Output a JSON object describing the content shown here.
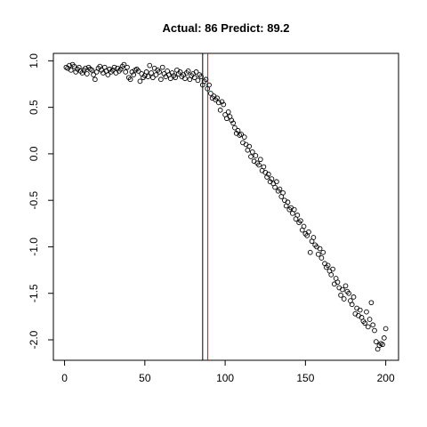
{
  "chart_data": {
    "type": "scatter",
    "title": "Actual: 86 Predict: 89.2",
    "x": [
      1,
      2,
      3,
      4,
      5,
      6,
      7,
      8,
      9,
      10,
      11,
      12,
      13,
      14,
      15,
      16,
      17,
      18,
      19,
      20,
      21,
      22,
      23,
      24,
      25,
      26,
      27,
      28,
      29,
      30,
      31,
      32,
      33,
      34,
      35,
      36,
      37,
      38,
      39,
      40,
      41,
      42,
      43,
      44,
      45,
      46,
      47,
      48,
      49,
      50,
      51,
      52,
      53,
      54,
      55,
      56,
      57,
      58,
      59,
      60,
      61,
      62,
      63,
      64,
      65,
      66,
      67,
      68,
      69,
      70,
      71,
      72,
      73,
      74,
      75,
      76,
      77,
      78,
      79,
      80,
      81,
      82,
      83,
      84,
      85,
      86,
      87,
      88,
      89,
      90,
      91,
      92,
      93,
      94,
      95,
      96,
      97,
      98,
      99,
      100,
      101,
      102,
      103,
      104,
      105,
      106,
      107,
      108,
      109,
      110,
      111,
      112,
      113,
      114,
      115,
      116,
      117,
      118,
      119,
      120,
      121,
      122,
      123,
      124,
      125,
      126,
      127,
      128,
      129,
      130,
      131,
      132,
      133,
      134,
      135,
      136,
      137,
      138,
      139,
      140,
      141,
      142,
      143,
      144,
      145,
      146,
      147,
      148,
      149,
      150,
      151,
      152,
      153,
      154,
      155,
      156,
      157,
      158,
      159,
      160,
      161,
      162,
      163,
      164,
      165,
      166,
      167,
      168,
      169,
      170,
      171,
      172,
      173,
      174,
      175,
      176,
      177,
      178,
      179,
      180,
      181,
      182,
      183,
      184,
      185,
      186,
      187,
      188,
      189,
      190,
      191,
      192,
      193,
      194,
      195,
      196,
      197,
      198,
      199,
      200
    ],
    "values": [
      0.93,
      0.92,
      0.95,
      0.9,
      0.96,
      0.94,
      0.88,
      0.91,
      0.93,
      0.89,
      0.87,
      0.9,
      0.92,
      0.86,
      0.93,
      0.91,
      0.9,
      0.85,
      0.8,
      0.88,
      0.92,
      0.94,
      0.9,
      0.87,
      0.93,
      0.89,
      0.85,
      0.91,
      0.88,
      0.9,
      0.93,
      0.87,
      0.92,
      0.89,
      0.91,
      0.94,
      0.96,
      0.88,
      0.93,
      0.82,
      0.8,
      0.88,
      0.85,
      0.9,
      0.91,
      0.89,
      0.78,
      0.86,
      0.82,
      0.84,
      0.88,
      0.83,
      0.95,
      0.87,
      0.82,
      0.92,
      0.85,
      0.9,
      0.88,
      0.8,
      0.93,
      0.86,
      0.83,
      0.89,
      0.85,
      0.81,
      0.87,
      0.84,
      0.82,
      0.9,
      0.86,
      0.88,
      0.83,
      0.85,
      0.81,
      0.87,
      0.89,
      0.8,
      0.84,
      0.86,
      0.82,
      0.88,
      0.79,
      0.85,
      0.83,
      0.74,
      0.78,
      0.8,
      0.7,
      0.74,
      0.65,
      0.6,
      0.62,
      0.58,
      0.6,
      0.55,
      0.47,
      0.56,
      0.53,
      0.42,
      0.38,
      0.45,
      0.4,
      0.36,
      0.33,
      0.28,
      0.22,
      0.25,
      0.2,
      0.21,
      0.12,
      0.18,
      0.1,
      0.04,
      0.08,
      -0.03,
      0.02,
      -0.08,
      -0.02,
      -0.1,
      -0.12,
      -0.06,
      -0.18,
      -0.14,
      -0.2,
      -0.25,
      -0.22,
      -0.3,
      -0.27,
      -0.32,
      -0.36,
      -0.3,
      -0.4,
      -0.38,
      -0.46,
      -0.42,
      -0.5,
      -0.56,
      -0.52,
      -0.6,
      -0.58,
      -0.64,
      -0.6,
      -0.7,
      -0.66,
      -0.74,
      -0.72,
      -0.82,
      -0.78,
      -0.86,
      -0.88,
      -0.84,
      -1.06,
      -0.94,
      -0.9,
      -0.98,
      -1.0,
      -1.08,
      -1.02,
      -1.12,
      -1.06,
      -1.18,
      -1.22,
      -1.2,
      -1.26,
      -1.3,
      -1.24,
      -1.4,
      -1.34,
      -1.38,
      -1.44,
      -1.52,
      -1.46,
      -1.56,
      -1.42,
      -1.48,
      -1.5,
      -1.58,
      -1.62,
      -1.54,
      -1.72,
      -1.66,
      -1.74,
      -1.68,
      -1.76,
      -1.8,
      -1.82,
      -1.7,
      -1.86,
      -1.78,
      -1.6,
      -1.84,
      -1.9,
      -2.02,
      -2.1,
      -2.06,
      -2.04,
      -2.05,
      -1.98,
      -1.88
    ],
    "color": "#000000",
    "xlim": [
      -6.96,
      207.96
    ],
    "xticks": [
      0,
      50,
      100,
      150,
      200
    ],
    "ylim": [
      -2.22,
      1.08
    ],
    "yticks": [
      {
        "value": -2,
        "label": "-2.0"
      },
      -1.5,
      {
        "value": -1,
        "label": "-1.0"
      },
      -0.5,
      {
        "value": 0,
        "label": "0.0"
      },
      0.5,
      {
        "value": 1,
        "label": "1.0"
      }
    ],
    "vlines": [
      {
        "x": 86,
        "color": "#000000"
      },
      {
        "x": 89.2,
        "color": "#ff0000"
      }
    ]
  }
}
